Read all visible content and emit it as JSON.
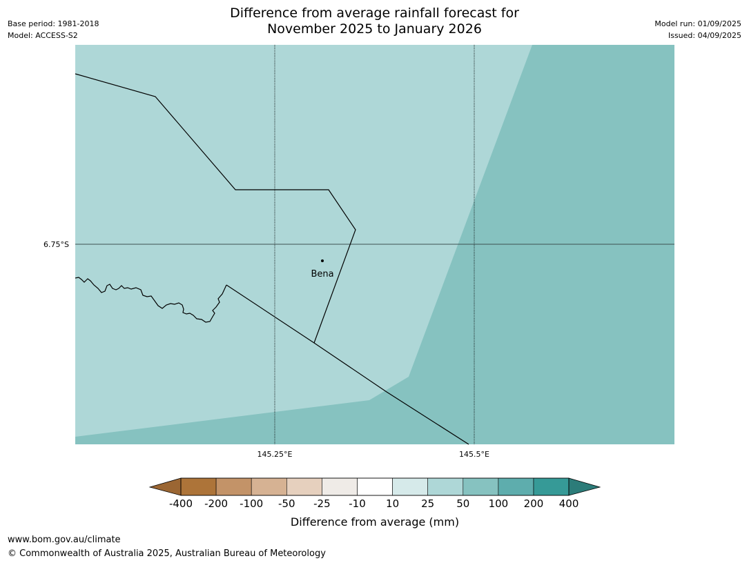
{
  "title": {
    "line1": "Difference from average rainfall forecast for",
    "line2": "November 2025 to January 2026"
  },
  "meta_left": {
    "base_period": "Base period: 1981-2018",
    "model": "Model: ACCESS-S2"
  },
  "meta_right": {
    "model_run": "Model run: 01/09/2025",
    "issued": "Issued: 04/09/2025"
  },
  "map": {
    "lat_label": "6.75°S",
    "lon_labels": [
      "145.25°E",
      "145.5°E"
    ],
    "town": "Bena",
    "zone_colors": {
      "light": "#aed7d7",
      "medium": "#86c2c0"
    },
    "zone_values": {
      "light": "25 to 50",
      "medium": "50 to 100"
    }
  },
  "legend": {
    "label": "Difference from average (mm)",
    "ticks": [
      "-400",
      "-200",
      "-100",
      "-50",
      "-25",
      "-10",
      "10",
      "25",
      "50",
      "100",
      "200",
      "400"
    ],
    "colors": [
      "#ad7439",
      "#c39368",
      "#d6b293",
      "#e6d0be",
      "#efebe7",
      "#ffffff",
      "#d6eaea",
      "#aed7d7",
      "#86c2c0",
      "#5eadad",
      "#369a97"
    ],
    "low_extend_color": "#9b6633",
    "high_extend_color": "#2c7c79"
  },
  "footer": {
    "url": "www.bom.gov.au/climate",
    "copyright": "© Commonwealth of Australia 2025, Australian Bureau of Meteorology"
  }
}
